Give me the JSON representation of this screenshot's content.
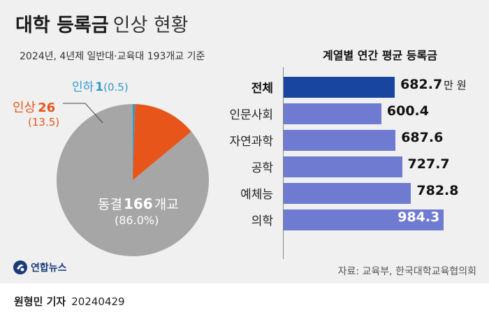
{
  "title": {
    "bold": "대학 등록금",
    "light": "인상 현황"
  },
  "subtitle": "2024년, 4년제 일반대·교육대 193개교 기준",
  "chart_data": [
    {
      "type": "pie",
      "slices": [
        {
          "name": "동결",
          "count": 166,
          "unit": "개교",
          "percent_label": "(86.0%)",
          "percent": 86.0,
          "color": "#a6a6a6"
        },
        {
          "name": "인상",
          "count": 26,
          "unit": "",
          "percent_label": "(13.5)",
          "percent": 13.5,
          "color": "#e8551a"
        },
        {
          "name": "인하",
          "count": 1,
          "unit": "",
          "percent_label": "(0.5)",
          "percent": 0.5,
          "color": "#3399cc"
        }
      ]
    },
    {
      "type": "bar",
      "orientation": "horizontal",
      "title": "계열별 연간 평균 등록금",
      "unit": "만 원",
      "categories": [
        "전체",
        "인문사회",
        "자연과학",
        "공학",
        "예체능",
        "의학"
      ],
      "values": [
        682.7,
        600.4,
        687.6,
        727.7,
        782.8,
        984.3
      ],
      "value_labels": [
        "682.7",
        "600.4",
        "687.6",
        "727.7",
        "782.8",
        "984.3"
      ],
      "highlight_index": 0,
      "colors": {
        "highlight": "#17459f",
        "default": "#6e7bd0"
      },
      "xlim": [
        0,
        1000
      ]
    }
  ],
  "logo": {
    "text": "연합뉴스",
    "icon": "yonhap-logo-icon"
  },
  "source": "자료: 교육부, 한국대학교육협의회",
  "credit": {
    "name": "원형민 기자",
    "date": "20240429"
  }
}
